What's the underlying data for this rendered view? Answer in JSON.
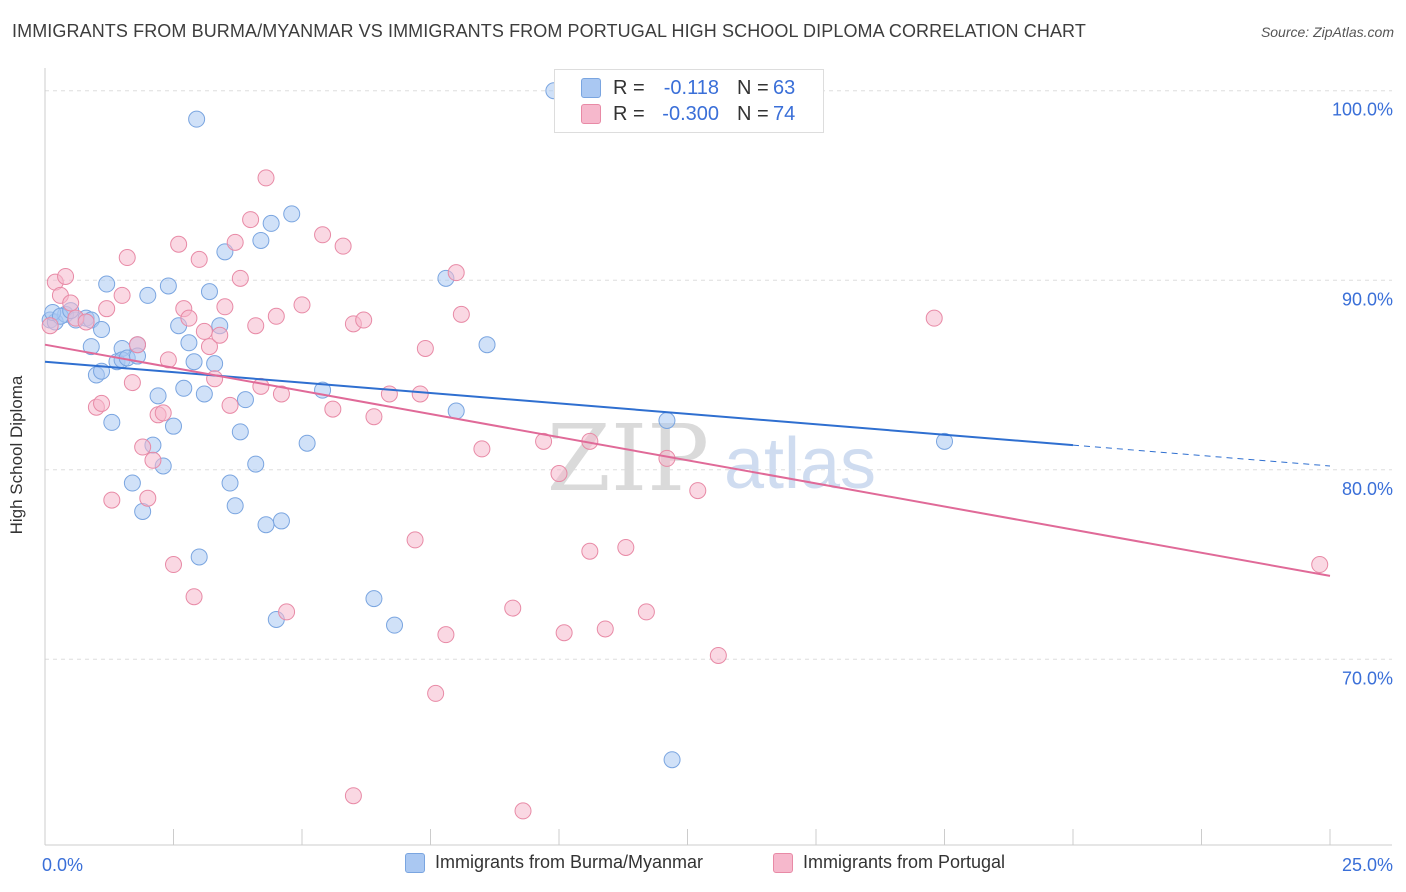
{
  "header": {
    "title": "IMMIGRANTS FROM BURMA/MYANMAR VS IMMIGRANTS FROM PORTUGAL HIGH SCHOOL DIPLOMA CORRELATION CHART",
    "source": "Source: ZipAtlas.com"
  },
  "watermark": {
    "zip": "ZIP",
    "atlas": "atlas"
  },
  "stats_box": {
    "rows": [
      {
        "r_label": "R =",
        "r_value": "-0.118",
        "n_label": "N =",
        "n_value": "63",
        "color": "#aac8f2",
        "border": "#7aa5e0"
      },
      {
        "r_label": "R =",
        "r_value": "-0.300",
        "n_label": "N =",
        "n_value": "74",
        "color": "#f6b8cc",
        "border": "#e88aa6"
      }
    ]
  },
  "legend": {
    "items": [
      {
        "label": "Immigrants from Burma/Myanmar",
        "color": "#aac8f2",
        "border": "#7aa5e0"
      },
      {
        "label": "Immigrants from Portugal",
        "color": "#f6b8cc",
        "border": "#e88aa6"
      }
    ]
  },
  "chart_data": {
    "type": "scatter",
    "title": "IMMIGRANTS FROM BURMA/MYANMAR VS IMMIGRANTS FROM PORTUGAL HIGH SCHOOL DIPLOMA CORRELATION CHART",
    "xlabel": "",
    "ylabel": "High School Diploma",
    "xlim": [
      0,
      25
    ],
    "ylim": [
      60.2,
      101.2
    ],
    "x_tick_labels": [
      {
        "value": 0,
        "label": "0.0%"
      },
      {
        "value": 25,
        "label": "25.0%"
      }
    ],
    "y_tick_labels": [
      {
        "value": 70,
        "label": "70.0%"
      },
      {
        "value": 80,
        "label": "80.0%"
      },
      {
        "value": 90,
        "label": "90.0%"
      },
      {
        "value": 100,
        "label": "100.0%"
      }
    ],
    "grid": "horizontal dashed",
    "legend_position": "bottom",
    "series": [
      {
        "name": "Immigrants from Burma/Myanmar",
        "color": "#aac8f2",
        "stroke": "#7aa5e0",
        "line_color": "#2f6fd0",
        "trend": {
          "x0": 0,
          "y0": 85.7,
          "x1": 20,
          "y1": 81.3,
          "dashed_to_x": 25,
          "dashed_to_y": 80.2
        },
        "points": [
          [
            0.1,
            87.9
          ],
          [
            0.2,
            87.8
          ],
          [
            0.4,
            88.2
          ],
          [
            0.6,
            87.9
          ],
          [
            0.8,
            88.0
          ],
          [
            0.9,
            87.9
          ],
          [
            0.9,
            86.5
          ],
          [
            1.0,
            85.0
          ],
          [
            1.1,
            85.2
          ],
          [
            1.1,
            87.4
          ],
          [
            1.2,
            89.8
          ],
          [
            1.3,
            82.5
          ],
          [
            1.4,
            85.7
          ],
          [
            1.5,
            86.4
          ],
          [
            1.5,
            85.8
          ],
          [
            1.6,
            85.9
          ],
          [
            1.7,
            79.3
          ],
          [
            1.8,
            86.6
          ],
          [
            1.8,
            86.0
          ],
          [
            1.9,
            77.8
          ],
          [
            2.0,
            89.2
          ],
          [
            2.1,
            81.3
          ],
          [
            2.2,
            83.9
          ],
          [
            2.3,
            80.2
          ],
          [
            2.4,
            89.7
          ],
          [
            2.5,
            82.3
          ],
          [
            2.6,
            87.6
          ],
          [
            2.7,
            84.3
          ],
          [
            2.8,
            86.7
          ],
          [
            2.9,
            85.7
          ],
          [
            2.95,
            98.5
          ],
          [
            3.0,
            75.4
          ],
          [
            3.1,
            84.0
          ],
          [
            3.2,
            89.4
          ],
          [
            3.3,
            85.6
          ],
          [
            3.4,
            87.6
          ],
          [
            3.5,
            91.5
          ],
          [
            3.6,
            79.3
          ],
          [
            3.7,
            78.1
          ],
          [
            3.8,
            82.0
          ],
          [
            3.9,
            83.7
          ],
          [
            4.1,
            80.3
          ],
          [
            4.2,
            92.1
          ],
          [
            4.3,
            77.1
          ],
          [
            4.4,
            93.0
          ],
          [
            4.5,
            72.1
          ],
          [
            4.6,
            77.3
          ],
          [
            4.8,
            93.5
          ],
          [
            5.1,
            81.4
          ],
          [
            5.4,
            84.2
          ],
          [
            6.4,
            73.2
          ],
          [
            6.8,
            71.8
          ],
          [
            7.8,
            90.1
          ],
          [
            8.0,
            83.1
          ],
          [
            8.6,
            86.6
          ],
          [
            9.9,
            100.0
          ],
          [
            12.8,
            100.0
          ],
          [
            12.2,
            64.7
          ],
          [
            12.1,
            82.6
          ],
          [
            17.5,
            81.5
          ],
          [
            0.15,
            88.3
          ],
          [
            0.3,
            88.1
          ],
          [
            0.5,
            88.4
          ]
        ]
      },
      {
        "name": "Immigrants from Portugal",
        "color": "#f6b8cc",
        "stroke": "#e88aa6",
        "line_color": "#e06a98",
        "trend": {
          "x0": 0,
          "y0": 86.6,
          "x1": 25,
          "y1": 74.4
        },
        "points": [
          [
            0.1,
            87.6
          ],
          [
            0.2,
            89.9
          ],
          [
            0.3,
            89.2
          ],
          [
            0.4,
            90.2
          ],
          [
            0.5,
            88.8
          ],
          [
            0.6,
            88.0
          ],
          [
            0.8,
            87.8
          ],
          [
            1.0,
            83.3
          ],
          [
            1.1,
            83.5
          ],
          [
            1.2,
            88.5
          ],
          [
            1.3,
            78.4
          ],
          [
            1.5,
            89.2
          ],
          [
            1.6,
            91.2
          ],
          [
            1.7,
            84.6
          ],
          [
            1.8,
            86.6
          ],
          [
            1.9,
            81.2
          ],
          [
            2.0,
            78.5
          ],
          [
            2.1,
            80.5
          ],
          [
            2.2,
            82.9
          ],
          [
            2.3,
            83.0
          ],
          [
            2.4,
            85.8
          ],
          [
            2.5,
            75.0
          ],
          [
            2.6,
            91.9
          ],
          [
            2.7,
            88.5
          ],
          [
            2.8,
            88.0
          ],
          [
            2.9,
            73.3
          ],
          [
            3.0,
            91.1
          ],
          [
            3.1,
            87.3
          ],
          [
            3.2,
            86.5
          ],
          [
            3.3,
            84.8
          ],
          [
            3.4,
            87.1
          ],
          [
            3.5,
            88.6
          ],
          [
            3.6,
            83.4
          ],
          [
            3.7,
            92.0
          ],
          [
            3.8,
            90.1
          ],
          [
            4.0,
            93.2
          ],
          [
            4.1,
            87.6
          ],
          [
            4.2,
            84.4
          ],
          [
            4.3,
            95.4
          ],
          [
            4.5,
            88.1
          ],
          [
            4.6,
            84.0
          ],
          [
            4.7,
            72.5
          ],
          [
            5.0,
            88.7
          ],
          [
            5.4,
            92.4
          ],
          [
            5.6,
            83.2
          ],
          [
            5.8,
            91.8
          ],
          [
            6.0,
            87.7
          ],
          [
            6.2,
            87.9
          ],
          [
            6.4,
            82.8
          ],
          [
            6.7,
            84.0
          ],
          [
            7.2,
            76.3
          ],
          [
            7.3,
            84.0
          ],
          [
            7.4,
            86.4
          ],
          [
            7.6,
            68.2
          ],
          [
            7.8,
            71.3
          ],
          [
            8.0,
            90.4
          ],
          [
            8.1,
            88.2
          ],
          [
            8.5,
            81.1
          ],
          [
            9.1,
            72.7
          ],
          [
            9.3,
            62.0
          ],
          [
            9.7,
            81.5
          ],
          [
            10.0,
            79.8
          ],
          [
            10.1,
            71.4
          ],
          [
            10.6,
            75.7
          ],
          [
            10.9,
            71.6
          ],
          [
            11.3,
            75.9
          ],
          [
            11.7,
            72.5
          ],
          [
            12.1,
            80.6
          ],
          [
            12.7,
            78.9
          ],
          [
            13.1,
            70.2
          ],
          [
            17.3,
            88.0
          ],
          [
            24.8,
            75.0
          ],
          [
            6.0,
            62.8
          ],
          [
            10.6,
            81.5
          ]
        ]
      }
    ]
  }
}
